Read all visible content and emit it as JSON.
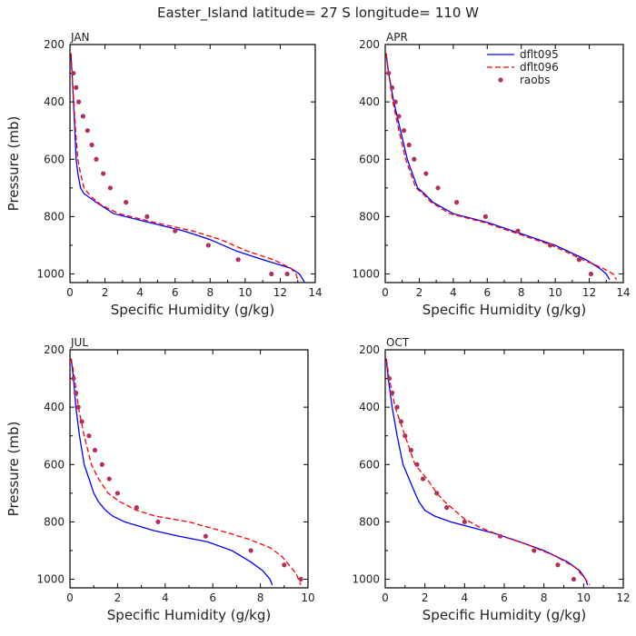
{
  "figure": {
    "title": "Easter_Island  latitude= 27 S longitude= 110 W"
  },
  "colors": {
    "dflt095": "#0000ff",
    "dflt096": "#ff0000",
    "raobs": "#b03060",
    "axis": "#000000"
  },
  "legend": {
    "placement": "top-right of APR panel",
    "items": [
      {
        "label": "dflt095",
        "style": "solid-line",
        "color": "#0000ff"
      },
      {
        "label": "dflt096",
        "style": "dashed-line",
        "color": "#ff0000"
      },
      {
        "label": "raobs",
        "style": "dot",
        "color": "#b03060"
      }
    ]
  },
  "chart_data": [
    {
      "type": "line",
      "panel": "JAN",
      "xlabel": "Specific Humidity (g/kg)",
      "ylabel": "Pressure (mb)",
      "xlim": [
        0,
        14
      ],
      "ylim": [
        1030,
        200
      ],
      "xticks": [
        0,
        2,
        4,
        6,
        8,
        10,
        12,
        14
      ],
      "yticks": [
        200,
        400,
        600,
        800,
        1000
      ],
      "series": [
        {
          "name": "dflt095",
          "x": [
            0.05,
            0.12,
            0.2,
            0.28,
            0.35,
            0.45,
            0.6,
            0.8,
            1.5,
            2.5,
            4.5,
            6.5,
            8.0,
            9.5,
            11.0,
            12.6,
            13.1,
            13.3,
            13.4
          ],
          "y": [
            230,
            300,
            400,
            500,
            600,
            650,
            700,
            720,
            750,
            790,
            820,
            850,
            880,
            920,
            950,
            980,
            1000,
            1020,
            1030
          ]
        },
        {
          "name": "dflt096",
          "x": [
            0.05,
            0.12,
            0.22,
            0.32,
            0.45,
            0.6,
            0.8,
            1.2,
            1.8,
            2.8,
            4.8,
            7.0,
            8.6,
            10.1,
            11.6,
            12.6,
            12.9,
            13.0
          ],
          "y": [
            230,
            300,
            400,
            500,
            600,
            650,
            700,
            730,
            760,
            790,
            820,
            850,
            880,
            920,
            950,
            980,
            1000,
            1020
          ]
        }
      ],
      "points": [
        {
          "name": "raobs",
          "x": [
            0.2,
            0.35,
            0.5,
            0.75,
            1.0,
            1.25,
            1.5,
            1.9,
            2.3,
            3.2,
            4.4,
            6.0,
            7.9,
            9.6,
            11.5,
            12.4
          ],
          "y": [
            300,
            350,
            400,
            450,
            500,
            550,
            600,
            650,
            700,
            750,
            800,
            850,
            900,
            950,
            1000,
            1000
          ]
        }
      ]
    },
    {
      "type": "line",
      "panel": "APR",
      "xlabel": "Specific Humidity (g/kg)",
      "ylabel": "",
      "xlim": [
        0,
        14
      ],
      "ylim": [
        1030,
        200
      ],
      "xticks": [
        0,
        2,
        4,
        6,
        8,
        10,
        12,
        14
      ],
      "yticks": [
        200,
        400,
        600,
        800,
        1000
      ],
      "series": [
        {
          "name": "dflt095",
          "x": [
            0.05,
            0.2,
            0.5,
            0.9,
            1.3,
            1.6,
            1.9,
            2.3,
            2.8,
            4.0,
            6.0,
            8.0,
            10.0,
            11.8,
            12.6,
            13.0,
            13.2
          ],
          "y": [
            230,
            300,
            400,
            500,
            600,
            650,
            700,
            720,
            750,
            790,
            820,
            860,
            900,
            950,
            980,
            1000,
            1020
          ]
        },
        {
          "name": "dflt096",
          "x": [
            0.05,
            0.2,
            0.45,
            0.8,
            1.2,
            1.5,
            1.8,
            2.2,
            2.7,
            3.8,
            5.8,
            7.8,
            9.8,
            11.6,
            12.8,
            13.4,
            13.6
          ],
          "y": [
            230,
            300,
            400,
            500,
            600,
            650,
            700,
            720,
            750,
            790,
            820,
            860,
            900,
            950,
            980,
            1000,
            1020
          ]
        }
      ],
      "points": [
        {
          "name": "raobs",
          "x": [
            0.2,
            0.4,
            0.6,
            0.8,
            1.1,
            1.4,
            1.7,
            2.4,
            3.1,
            4.2,
            5.9,
            7.8,
            9.7,
            11.4,
            12.1
          ],
          "y": [
            300,
            350,
            400,
            450,
            500,
            550,
            600,
            650,
            700,
            750,
            800,
            850,
            900,
            950,
            1000
          ]
        }
      ]
    },
    {
      "type": "line",
      "panel": "JUL",
      "xlabel": "Specific Humidity (g/kg)",
      "ylabel": "Pressure (mb)",
      "xlim": [
        0,
        10
      ],
      "ylim": [
        1030,
        200
      ],
      "xticks": [
        0,
        2,
        4,
        6,
        8,
        10
      ],
      "yticks": [
        200,
        400,
        600,
        800,
        1000
      ],
      "series": [
        {
          "name": "dflt095",
          "x": [
            0.05,
            0.15,
            0.25,
            0.4,
            0.6,
            0.8,
            1.0,
            1.2,
            1.5,
            1.8,
            2.3,
            3.5,
            4.6,
            5.8,
            6.8,
            7.6,
            8.1,
            8.4,
            8.5
          ],
          "y": [
            230,
            300,
            400,
            500,
            600,
            650,
            700,
            730,
            760,
            780,
            800,
            830,
            850,
            870,
            900,
            940,
            970,
            1000,
            1020
          ]
        },
        {
          "name": "dflt096",
          "x": [
            0.05,
            0.2,
            0.35,
            0.6,
            0.9,
            1.2,
            1.6,
            2.1,
            2.8,
            3.6,
            5.0,
            6.3,
            7.5,
            8.4,
            8.9,
            9.2,
            9.5,
            9.7
          ],
          "y": [
            230,
            300,
            400,
            500,
            600,
            650,
            700,
            730,
            760,
            780,
            800,
            830,
            860,
            890,
            920,
            950,
            980,
            1020
          ]
        }
      ],
      "points": [
        {
          "name": "raobs",
          "x": [
            0.15,
            0.25,
            0.35,
            0.5,
            0.8,
            1.05,
            1.35,
            1.65,
            2.0,
            2.8,
            3.7,
            5.7,
            7.6,
            9.0,
            9.7
          ],
          "y": [
            300,
            350,
            400,
            450,
            500,
            550,
            600,
            650,
            700,
            750,
            800,
            850,
            900,
            950,
            1000
          ]
        }
      ]
    },
    {
      "type": "line",
      "panel": "OCT",
      "xlabel": "Specific Humidity (g/kg)",
      "ylabel": "",
      "xlim": [
        0,
        12
      ],
      "ylim": [
        1030,
        200
      ],
      "xticks": [
        0,
        2,
        4,
        6,
        8,
        10,
        12
      ],
      "yticks": [
        200,
        400,
        600,
        800,
        1000
      ],
      "series": [
        {
          "name": "dflt095",
          "x": [
            0.05,
            0.15,
            0.35,
            0.6,
            0.9,
            1.2,
            1.5,
            1.7,
            2.0,
            2.5,
            3.3,
            4.4,
            5.5,
            6.8,
            8.0,
            9.2,
            9.8,
            10.1,
            10.2
          ],
          "y": [
            230,
            300,
            400,
            500,
            600,
            650,
            700,
            730,
            760,
            780,
            800,
            820,
            840,
            870,
            900,
            940,
            970,
            1000,
            1020
          ]
        },
        {
          "name": "dflt096",
          "x": [
            0.05,
            0.2,
            0.5,
            1.0,
            1.5,
            2.1,
            2.6,
            3.0,
            3.5,
            4.0,
            4.8,
            5.9,
            7.2,
            8.6,
            9.6,
            10.1,
            10.3
          ],
          "y": [
            230,
            300,
            400,
            500,
            600,
            650,
            700,
            730,
            760,
            790,
            820,
            850,
            880,
            920,
            960,
            1000,
            1020
          ]
        }
      ],
      "points": [
        {
          "name": "raobs",
          "x": [
            0.2,
            0.35,
            0.6,
            0.8,
            1.0,
            1.3,
            1.6,
            1.9,
            2.6,
            3.1,
            4.0,
            5.8,
            7.5,
            8.7,
            9.5
          ],
          "y": [
            300,
            350,
            400,
            450,
            500,
            550,
            600,
            650,
            700,
            750,
            800,
            850,
            900,
            950,
            1000
          ]
        }
      ]
    }
  ]
}
